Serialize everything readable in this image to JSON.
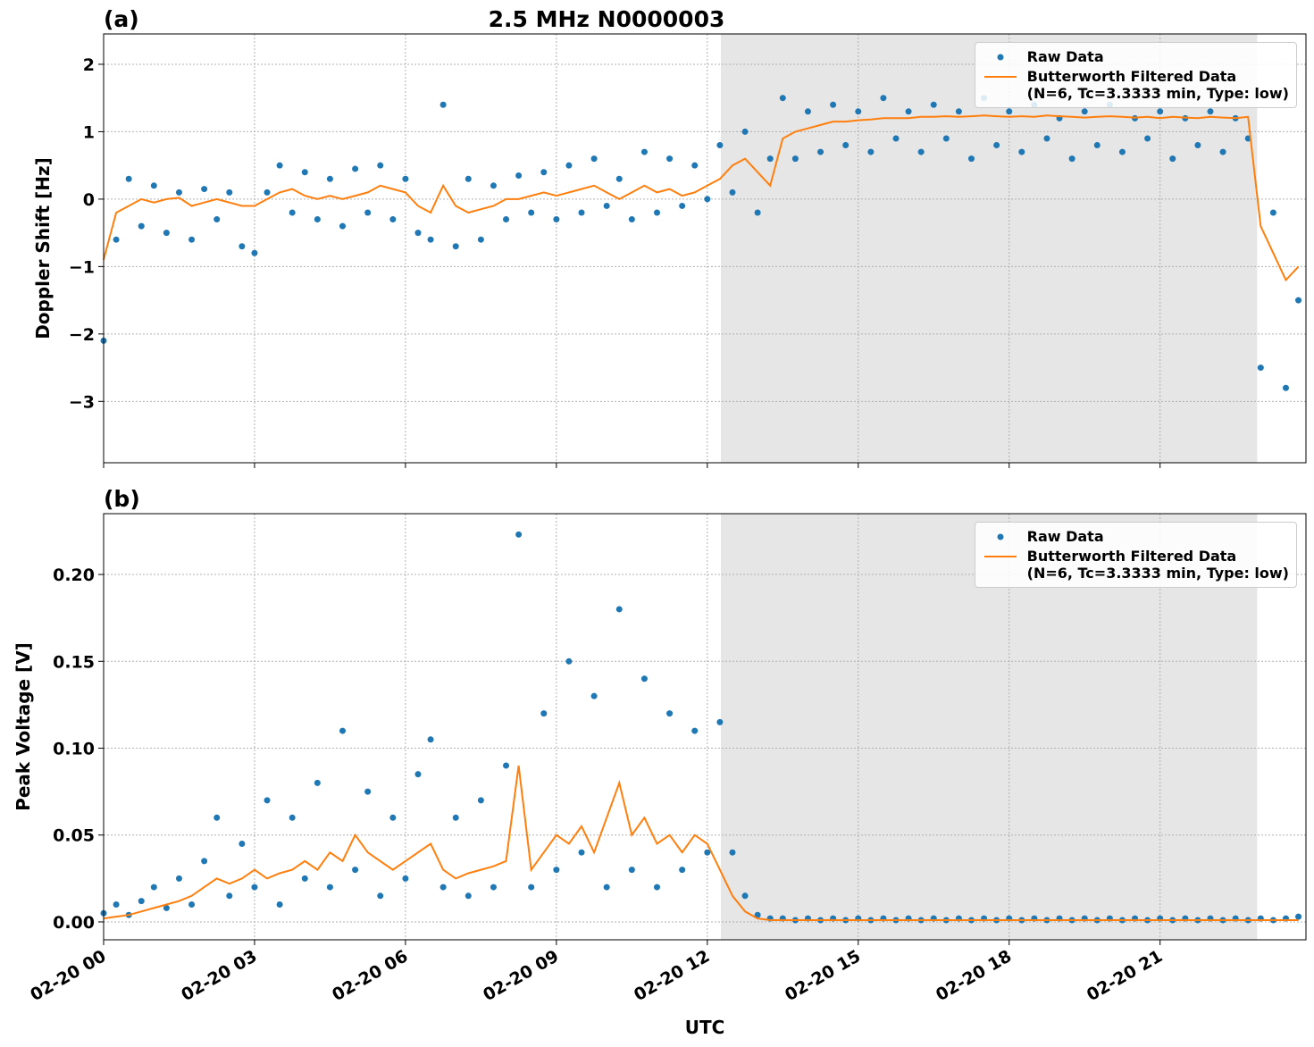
{
  "chart_data": [
    {
      "type": "scatter_line",
      "title": "2.5 MHz N0000003",
      "panel_label": "(a)",
      "ylabel": "Doppler Shift [Hz]",
      "xlim": [
        0,
        23.9
      ],
      "xticks": [
        0,
        3,
        6,
        9,
        12,
        15,
        18,
        21
      ],
      "ylim": [
        -3.91,
        2.45
      ],
      "yticks": [
        {
          "value": -3,
          "label": "−3"
        },
        {
          "value": -2,
          "label": "−2"
        },
        {
          "value": -1,
          "label": "−1"
        },
        0,
        1,
        2
      ],
      "grid": true,
      "legend": "upper right",
      "shade": [
        12.27,
        22.93
      ],
      "shade_color": "#e6e6e6",
      "x": [
        0,
        0.25,
        0.5,
        0.75,
        1,
        1.25,
        1.5,
        1.75,
        2,
        2.25,
        2.5,
        2.75,
        3,
        3.25,
        3.5,
        3.75,
        4,
        4.25,
        4.5,
        4.75,
        5,
        5.25,
        5.5,
        5.75,
        6,
        6.25,
        6.5,
        6.75,
        7,
        7.25,
        7.5,
        7.75,
        8,
        8.25,
        8.5,
        8.75,
        9,
        9.25,
        9.5,
        9.75,
        10,
        10.25,
        10.5,
        10.75,
        11,
        11.25,
        11.5,
        11.75,
        12,
        12.25,
        12.5,
        12.75,
        13,
        13.25,
        13.5,
        13.75,
        14,
        14.25,
        14.5,
        14.75,
        15,
        15.25,
        15.5,
        15.75,
        16,
        16.25,
        16.5,
        16.75,
        17,
        17.25,
        17.5,
        17.75,
        18,
        18.25,
        18.5,
        18.75,
        19,
        19.25,
        19.5,
        19.75,
        20,
        20.25,
        20.5,
        20.75,
        21,
        21.25,
        21.5,
        21.75,
        22,
        22.25,
        22.5,
        22.75,
        23,
        23.25,
        23.5,
        23.75
      ],
      "series": [
        {
          "name": "Raw Data",
          "kind": "points",
          "color": "#1f77b4",
          "values": [
            -2.1,
            -0.6,
            0.3,
            -0.4,
            0.2,
            -0.5,
            0.1,
            -0.6,
            0.15,
            -0.3,
            0.1,
            -0.7,
            -0.8,
            0.1,
            0.5,
            -0.2,
            0.4,
            -0.3,
            0.3,
            -0.4,
            0.45,
            -0.2,
            0.5,
            -0.3,
            0.3,
            -0.5,
            -0.6,
            1.4,
            -0.7,
            0.3,
            -0.6,
            0.2,
            -0.3,
            0.35,
            -0.2,
            0.4,
            -0.3,
            0.5,
            -0.2,
            0.6,
            -0.1,
            0.3,
            -0.3,
            0.7,
            -0.2,
            0.6,
            -0.1,
            0.5,
            0.0,
            0.8,
            0.1,
            1.0,
            -0.2,
            0.6,
            1.5,
            0.6,
            1.3,
            0.7,
            1.4,
            0.8,
            1.3,
            0.7,
            1.5,
            0.9,
            1.3,
            0.7,
            1.4,
            0.9,
            1.3,
            0.6,
            1.5,
            0.8,
            1.3,
            0.7,
            1.4,
            0.9,
            1.2,
            0.6,
            1.3,
            0.8,
            1.4,
            0.7,
            1.2,
            0.9,
            1.3,
            0.6,
            1.2,
            0.8,
            1.3,
            0.7,
            1.2,
            0.9,
            -2.5,
            -0.2,
            -2.8,
            -1.5
          ]
        },
        {
          "name": "Butterworth Filtered Data\n(N=6, Tc=3.3333 min, Type: low)",
          "kind": "line",
          "color": "#ff7f0e",
          "values": [
            -0.9,
            -0.2,
            -0.1,
            0,
            -0.05,
            0,
            0.02,
            -0.1,
            -0.05,
            0,
            -0.05,
            -0.1,
            -0.1,
            0,
            0.1,
            0.15,
            0.05,
            0,
            0.05,
            0,
            0.05,
            0.1,
            0.2,
            0.15,
            0.1,
            -0.1,
            -0.2,
            0.2,
            -0.1,
            -0.2,
            -0.15,
            -0.1,
            0,
            0,
            0.05,
            0.1,
            0.05,
            0.1,
            0.15,
            0.2,
            0.1,
            0,
            0.1,
            0.2,
            0.1,
            0.15,
            0.05,
            0.1,
            0.2,
            0.3,
            0.5,
            0.6,
            0.4,
            0.2,
            0.9,
            1.0,
            1.05,
            1.1,
            1.15,
            1.15,
            1.17,
            1.18,
            1.2,
            1.2,
            1.2,
            1.22,
            1.22,
            1.23,
            1.22,
            1.23,
            1.24,
            1.23,
            1.22,
            1.23,
            1.22,
            1.24,
            1.23,
            1.22,
            1.21,
            1.22,
            1.23,
            1.22,
            1.21,
            1.22,
            1.2,
            1.22,
            1.21,
            1.2,
            1.22,
            1.21,
            1.2,
            1.22,
            -0.4,
            -0.8,
            -1.2,
            -1.0
          ]
        }
      ]
    },
    {
      "type": "scatter_line",
      "panel_label": "(b)",
      "ylabel": "Peak Voltage [V]",
      "xlabel": "UTC",
      "xlim": [
        0,
        23.9
      ],
      "xticks": [
        {
          "value": 0,
          "label": "02-20 00"
        },
        {
          "value": 3,
          "label": "02-20 03"
        },
        {
          "value": 6,
          "label": "02-20 06"
        },
        {
          "value": 9,
          "label": "02-20 09"
        },
        {
          "value": 12,
          "label": "02-20 12"
        },
        {
          "value": 15,
          "label": "02-20 15"
        },
        {
          "value": 18,
          "label": "02-20 18"
        },
        {
          "value": 21,
          "label": "02-20 21"
        }
      ],
      "ylim": [
        -0.0103,
        0.235
      ],
      "yticks": [
        {
          "value": 0,
          "label": "0.00"
        },
        0.05,
        {
          "value": 0.1,
          "label": "0.10"
        },
        0.15,
        {
          "value": 0.2,
          "label": "0.20"
        }
      ],
      "grid": true,
      "legend": "upper right",
      "shade": [
        12.27,
        22.93
      ],
      "shade_color": "#e6e6e6",
      "x": [
        0,
        0.25,
        0.5,
        0.75,
        1,
        1.25,
        1.5,
        1.75,
        2,
        2.25,
        2.5,
        2.75,
        3,
        3.25,
        3.5,
        3.75,
        4,
        4.25,
        4.5,
        4.75,
        5,
        5.25,
        5.5,
        5.75,
        6,
        6.25,
        6.5,
        6.75,
        7,
        7.25,
        7.5,
        7.75,
        8,
        8.25,
        8.5,
        8.75,
        9,
        9.25,
        9.5,
        9.75,
        10,
        10.25,
        10.5,
        10.75,
        11,
        11.25,
        11.5,
        11.75,
        12,
        12.25,
        12.5,
        12.75,
        13,
        13.25,
        13.5,
        13.75,
        14,
        14.25,
        14.5,
        14.75,
        15,
        15.25,
        15.5,
        15.75,
        16,
        16.25,
        16.5,
        16.75,
        17,
        17.25,
        17.5,
        17.75,
        18,
        18.25,
        18.5,
        18.75,
        19,
        19.25,
        19.5,
        19.75,
        20,
        20.25,
        20.5,
        20.75,
        21,
        21.25,
        21.5,
        21.75,
        22,
        22.25,
        22.5,
        22.75,
        23,
        23.25,
        23.5,
        23.75
      ],
      "series": [
        {
          "name": "Raw Data",
          "kind": "points",
          "color": "#1f77b4",
          "values": [
            0.005,
            0.01,
            0.004,
            0.012,
            0.02,
            0.008,
            0.025,
            0.01,
            0.035,
            0.06,
            0.015,
            0.045,
            0.02,
            0.07,
            0.01,
            0.06,
            0.025,
            0.08,
            0.02,
            0.11,
            0.03,
            0.075,
            0.015,
            0.06,
            0.025,
            0.085,
            0.105,
            0.02,
            0.06,
            0.015,
            0.07,
            0.02,
            0.09,
            0.223,
            0.02,
            0.12,
            0.03,
            0.15,
            0.04,
            0.13,
            0.02,
            0.18,
            0.03,
            0.14,
            0.02,
            0.12,
            0.03,
            0.11,
            0.04,
            0.115,
            0.04,
            0.015,
            0.004,
            0.002,
            0.002,
            0.001,
            0.002,
            0.001,
            0.002,
            0.001,
            0.002,
            0.001,
            0.002,
            0.001,
            0.002,
            0.001,
            0.002,
            0.001,
            0.002,
            0.001,
            0.002,
            0.001,
            0.002,
            0.001,
            0.002,
            0.001,
            0.002,
            0.001,
            0.002,
            0.001,
            0.002,
            0.001,
            0.002,
            0.001,
            0.002,
            0.001,
            0.002,
            0.001,
            0.002,
            0.001,
            0.002,
            0.001,
            0.002,
            0.001,
            0.002,
            0.003
          ]
        },
        {
          "name": "Butterworth Filtered Data\n(N=6, Tc=3.3333 min, Type: low)",
          "kind": "line",
          "color": "#ff7f0e",
          "values": [
            0.002,
            0.003,
            0.004,
            0.006,
            0.008,
            0.01,
            0.012,
            0.015,
            0.02,
            0.025,
            0.022,
            0.025,
            0.03,
            0.025,
            0.028,
            0.03,
            0.035,
            0.03,
            0.04,
            0.035,
            0.05,
            0.04,
            0.035,
            0.03,
            0.035,
            0.04,
            0.045,
            0.03,
            0.025,
            0.028,
            0.03,
            0.032,
            0.035,
            0.09,
            0.03,
            0.04,
            0.05,
            0.045,
            0.055,
            0.04,
            0.06,
            0.08,
            0.05,
            0.06,
            0.045,
            0.05,
            0.04,
            0.05,
            0.045,
            0.03,
            0.015,
            0.006,
            0.002,
            0.001,
            0.001,
            0.001,
            0.001,
            0.001,
            0.001,
            0.001,
            0.001,
            0.001,
            0.001,
            0.001,
            0.001,
            0.001,
            0.001,
            0.001,
            0.001,
            0.001,
            0.001,
            0.001,
            0.001,
            0.001,
            0.001,
            0.001,
            0.001,
            0.001,
            0.001,
            0.001,
            0.001,
            0.001,
            0.001,
            0.001,
            0.001,
            0.001,
            0.001,
            0.001,
            0.001,
            0.001,
            0.001,
            0.001,
            0.001,
            0.001,
            0.001,
            0.001
          ]
        }
      ]
    }
  ]
}
